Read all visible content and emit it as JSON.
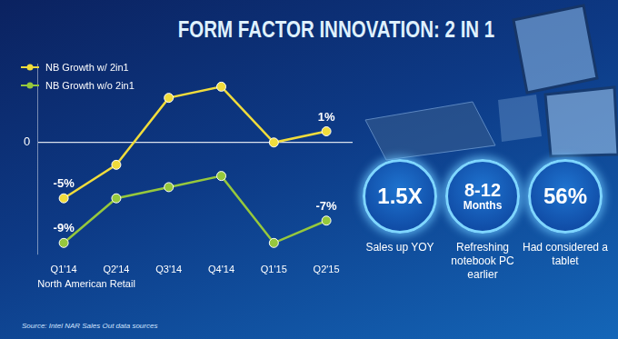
{
  "chart_data": {
    "type": "line",
    "title": "FORM FACTOR INNOVATION: 2 IN 1",
    "categories": [
      "Q1'14",
      "Q2'14",
      "Q3'14",
      "Q4'14",
      "Q1'15",
      "Q2'15"
    ],
    "xlabel": "North American Retail",
    "source": "Source: Intel NAR Sales Out data sources",
    "series": [
      {
        "name": "NB Growth w/ 2in1",
        "color": "#f0dc3c",
        "marker": "circle",
        "line_style": "solid",
        "values": [
          -5,
          -2,
          4,
          5,
          0,
          1
        ],
        "value_labels": [
          "-5%",
          null,
          null,
          null,
          null,
          "1%"
        ]
      },
      {
        "name": "NB Growth w/o 2in1",
        "color": "#96c83c",
        "marker": "circle",
        "line_style": "solid",
        "values": [
          -9,
          -5,
          -4,
          -3,
          -9,
          -7
        ],
        "value_labels": [
          "-9%",
          null,
          null,
          null,
          null,
          "-7%"
        ]
      }
    ],
    "ylim": [
      -10,
      7
    ],
    "yticks": [
      0
    ],
    "grid": true,
    "legend": "upper left",
    "data_labels": true
  },
  "stats": [
    {
      "value": "1.5X",
      "label": "Sales up YOY"
    },
    {
      "value": "8-12",
      "unit": "Months",
      "label": "Refreshing notebook PC earlier"
    },
    {
      "value": "56%",
      "label": "Had considered a tablet"
    }
  ]
}
